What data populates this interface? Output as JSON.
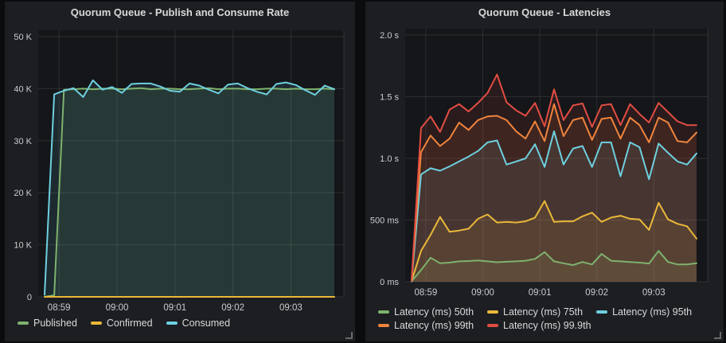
{
  "style": {
    "page_bg": "#0b0c0e",
    "panel_bg": "#1c1e22",
    "plot_bg": "#141619",
    "grid_color": "rgba(255,255,255,0.10)",
    "tick_color": "#cbccce",
    "title_color": "#d8d9da",
    "legend_text_color": "#d8d9da",
    "fill_opacity": 0.11,
    "series_palette": {
      "green": "#7EB26D",
      "yellow": "#EAB839",
      "cyan": "#6ED0E0",
      "orange": "#EF843C",
      "red": "#E24D42"
    }
  },
  "chart_data": [
    {
      "type": "area",
      "title": "Quorum Queue - Publish and Consume Rate",
      "xlabel": "",
      "ylabel": "",
      "ylim": [
        0,
        50000
      ],
      "grid": true,
      "legend_position": "bottom",
      "x": [
        "08:58:45",
        "08:58:55",
        "08:59:05",
        "08:59:15",
        "08:59:25",
        "08:59:35",
        "08:59:45",
        "08:59:55",
        "09:00:05",
        "09:00:15",
        "09:00:25",
        "09:00:35",
        "09:00:45",
        "09:00:55",
        "09:01:05",
        "09:01:15",
        "09:01:25",
        "09:01:35",
        "09:01:45",
        "09:01:55",
        "09:02:05",
        "09:02:15",
        "09:02:25",
        "09:02:35",
        "09:02:45",
        "09:02:55",
        "09:03:05",
        "09:03:15",
        "09:03:25",
        "09:03:35",
        "09:03:45"
      ],
      "x_ticks": [
        {
          "index": 1.5,
          "label": "08:59"
        },
        {
          "index": 7.5,
          "label": "09:00"
        },
        {
          "index": 13.5,
          "label": "09:01"
        },
        {
          "index": 19.5,
          "label": "09:02"
        },
        {
          "index": 25.5,
          "label": "09:03"
        }
      ],
      "y_ticks": [
        {
          "value": 0,
          "label": "0"
        },
        {
          "value": 10000,
          "label": "10 K"
        },
        {
          "value": 20000,
          "label": "20 K"
        },
        {
          "value": 30000,
          "label": "30 K"
        },
        {
          "value": 40000,
          "label": "40 K"
        },
        {
          "value": 50000,
          "label": "50 K"
        }
      ],
      "series": [
        {
          "name": "Published",
          "color": "#7EB26D",
          "values": [
            0,
            300,
            39800,
            39900,
            40000,
            39900,
            40000,
            40000,
            39900,
            40000,
            40100,
            39900,
            40000,
            40000,
            39900,
            39900,
            40000,
            40100,
            39900,
            40000,
            40000,
            39900,
            39900,
            40000,
            40000,
            39900,
            40000,
            39900,
            39900,
            40000,
            39900
          ]
        },
        {
          "name": "Confirmed",
          "color": "#EAB839",
          "values": [
            0,
            0,
            0,
            0,
            0,
            0,
            0,
            0,
            0,
            0,
            0,
            0,
            0,
            0,
            0,
            0,
            0,
            0,
            0,
            0,
            0,
            0,
            0,
            0,
            0,
            0,
            0,
            0,
            0,
            0,
            0
          ]
        },
        {
          "name": "Consumed",
          "color": "#6ED0E0",
          "values": [
            400,
            38900,
            39600,
            40100,
            38400,
            41600,
            39800,
            40300,
            39200,
            40900,
            41000,
            41000,
            40400,
            39600,
            39400,
            41000,
            40600,
            39800,
            39100,
            40800,
            41000,
            40100,
            39400,
            38900,
            40900,
            41200,
            40700,
            39700,
            38800,
            40600,
            39900
          ]
        }
      ]
    },
    {
      "type": "area",
      "title": "Quorum Queue - Latencies",
      "xlabel": "",
      "ylabel": "",
      "ylim": [
        0,
        2000
      ],
      "grid": true,
      "legend_position": "bottom",
      "x": [
        "08:58:45",
        "08:58:55",
        "08:59:05",
        "08:59:15",
        "08:59:25",
        "08:59:35",
        "08:59:45",
        "08:59:55",
        "09:00:05",
        "09:00:15",
        "09:00:25",
        "09:00:35",
        "09:00:45",
        "09:00:55",
        "09:01:05",
        "09:01:15",
        "09:01:25",
        "09:01:35",
        "09:01:45",
        "09:01:55",
        "09:02:05",
        "09:02:15",
        "09:02:25",
        "09:02:35",
        "09:02:45",
        "09:02:55",
        "09:03:05",
        "09:03:15",
        "09:03:25",
        "09:03:35",
        "09:03:45"
      ],
      "x_ticks": [
        {
          "index": 1.5,
          "label": "08:59"
        },
        {
          "index": 7.5,
          "label": "09:00"
        },
        {
          "index": 13.5,
          "label": "09:01"
        },
        {
          "index": 19.5,
          "label": "09:02"
        },
        {
          "index": 25.5,
          "label": "09:03"
        }
      ],
      "y_ticks": [
        {
          "value": 0,
          "label": "0 ms"
        },
        {
          "value": 500,
          "label": "500 ms"
        },
        {
          "value": 1000,
          "label": "1.0 s"
        },
        {
          "value": 1500,
          "label": "1.5 s"
        },
        {
          "value": 2000,
          "label": "2.0 s"
        }
      ],
      "series": [
        {
          "name": "Latency (ms) 50th",
          "color": "#7EB26D",
          "values": [
            3,
            95,
            195,
            150,
            155,
            165,
            168,
            172,
            165,
            158,
            162,
            165,
            170,
            185,
            240,
            165,
            150,
            135,
            160,
            140,
            225,
            170,
            165,
            160,
            155,
            148,
            250,
            160,
            140,
            140,
            150
          ]
        },
        {
          "name": "Latency (ms) 75th",
          "color": "#EAB839",
          "values": [
            5,
            250,
            380,
            525,
            405,
            415,
            430,
            510,
            545,
            480,
            485,
            480,
            490,
            520,
            655,
            485,
            490,
            490,
            530,
            560,
            485,
            520,
            535,
            510,
            505,
            420,
            640,
            505,
            470,
            450,
            350
          ]
        },
        {
          "name": "Latency (ms) 95th",
          "color": "#6ED0E0",
          "values": [
            6,
            870,
            920,
            900,
            935,
            975,
            1015,
            1060,
            1130,
            1145,
            950,
            975,
            1000,
            1115,
            930,
            1220,
            950,
            1080,
            1100,
            930,
            1130,
            1130,
            855,
            1130,
            1090,
            830,
            1120,
            1045,
            975,
            950,
            1040
          ]
        },
        {
          "name": "Latency (ms) 99th",
          "color": "#EF843C",
          "values": [
            8,
            1050,
            1185,
            1100,
            1160,
            1290,
            1230,
            1310,
            1340,
            1345,
            1310,
            1220,
            1160,
            1300,
            1140,
            1440,
            1180,
            1310,
            1330,
            1150,
            1320,
            1330,
            1160,
            1330,
            1270,
            1130,
            1330,
            1290,
            1140,
            1130,
            1210
          ]
        },
        {
          "name": "Latency (ms) 99.9th",
          "color": "#E24D42",
          "values": [
            10,
            1245,
            1340,
            1215,
            1395,
            1440,
            1380,
            1450,
            1530,
            1680,
            1455,
            1390,
            1345,
            1450,
            1260,
            1560,
            1310,
            1430,
            1445,
            1255,
            1430,
            1440,
            1270,
            1440,
            1360,
            1290,
            1450,
            1375,
            1300,
            1270,
            1270
          ]
        }
      ]
    }
  ]
}
